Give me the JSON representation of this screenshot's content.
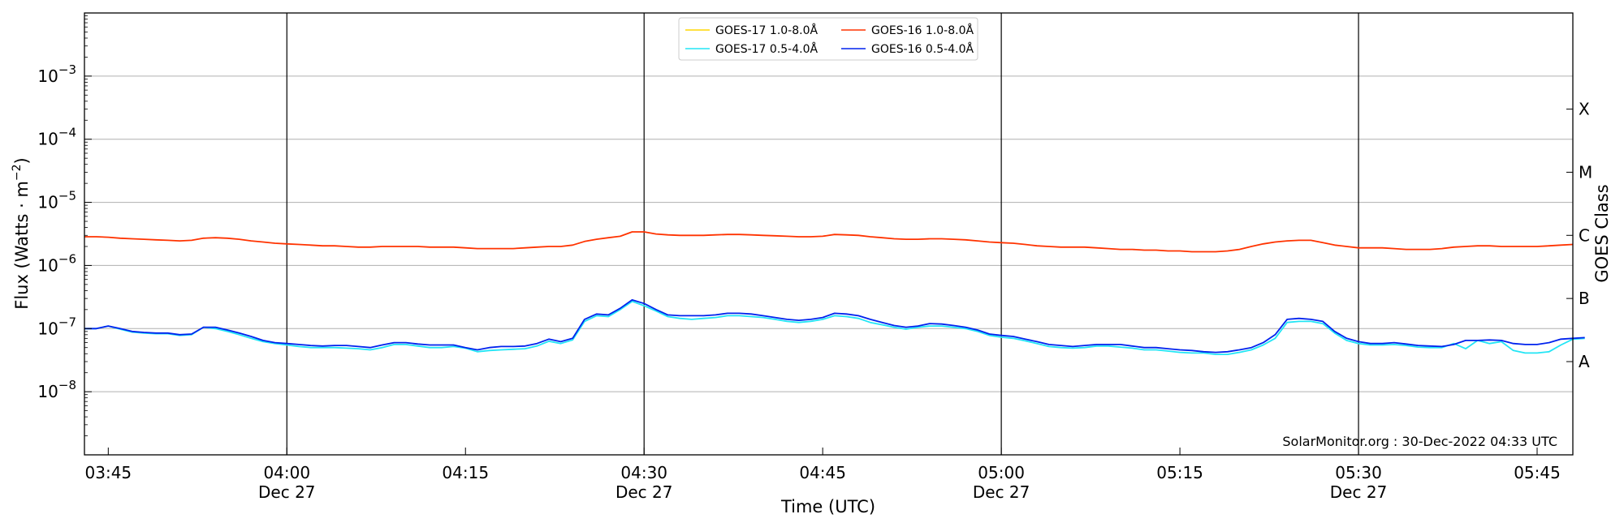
{
  "chart_data": {
    "type": "line",
    "title": "",
    "xlabel": "Time (UTC)",
    "ylabel_text": "Flux (Watts · m",
    "ylabel_sup": "−2",
    "ylabel_close": ")",
    "right_axis_label": "GOES Class",
    "y_scale": "log",
    "ylim": [
      1e-09,
      0.01
    ],
    "xlim": [
      "03:43",
      "05:48"
    ],
    "date": "Dec 27",
    "grid": "horizontal at decades",
    "legend_position": "top-center",
    "x_ticks": [
      {
        "label": "03:45",
        "date": ""
      },
      {
        "label": "04:00",
        "date": "Dec 27"
      },
      {
        "label": "04:15",
        "date": ""
      },
      {
        "label": "04:30",
        "date": "Dec 27"
      },
      {
        "label": "04:45",
        "date": ""
      },
      {
        "label": "05:00",
        "date": "Dec 27"
      },
      {
        "label": "05:15",
        "date": ""
      },
      {
        "label": "05:30",
        "date": "Dec 27"
      },
      {
        "label": "05:45",
        "date": ""
      }
    ],
    "x_tick_minutes": [
      225,
      240,
      255,
      270,
      285,
      300,
      315,
      330,
      345
    ],
    "x_major_minutes": [
      240,
      270,
      300,
      330
    ],
    "y_ticks": [
      {
        "mant": "10",
        "exp": "−3",
        "value": 0.001
      },
      {
        "mant": "10",
        "exp": "−4",
        "value": 0.0001
      },
      {
        "mant": "10",
        "exp": "−5",
        "value": 1e-05
      },
      {
        "mant": "10",
        "exp": "−6",
        "value": 1e-06
      },
      {
        "mant": "10",
        "exp": "−7",
        "value": 1e-07
      },
      {
        "mant": "10",
        "exp": "−8",
        "value": 1e-08
      }
    ],
    "goes_classes": [
      {
        "label": "X",
        "value": 0.0003
      },
      {
        "label": "M",
        "value": 3e-05
      },
      {
        "label": "C",
        "value": 3e-06
      },
      {
        "label": "B",
        "value": 3e-07
      },
      {
        "label": "A",
        "value": 3e-08
      }
    ],
    "x_minutes_start": 223,
    "x_step_minutes": 1,
    "series": [
      {
        "name": "GOES-17 1.0-8.0Å",
        "color": "#ffd700",
        "values": []
      },
      {
        "name": "GOES-17 0.5-4.0Å",
        "color": "#22e5f5",
        "values": [
          1e-07,
          1e-07,
          1.1e-07,
          9.8e-08,
          8.8e-08,
          8.5e-08,
          8.3e-08,
          8.3e-08,
          7.8e-08,
          8e-08,
          1.05e-07,
          1e-07,
          9e-08,
          8e-08,
          7e-08,
          6.2e-08,
          5.8e-08,
          5.5e-08,
          5.2e-08,
          5e-08,
          5e-08,
          5e-08,
          4.9e-08,
          4.8e-08,
          4.6e-08,
          5e-08,
          5.6e-08,
          5.6e-08,
          5.3e-08,
          5e-08,
          5e-08,
          5.2e-08,
          4.9e-08,
          4.3e-08,
          4.5e-08,
          4.6e-08,
          4.7e-08,
          4.8e-08,
          5.3e-08,
          6.3e-08,
          5.8e-08,
          6.6e-08,
          1.3e-07,
          1.6e-07,
          1.55e-07,
          2e-07,
          2.7e-07,
          2.3e-07,
          1.9e-07,
          1.55e-07,
          1.45e-07,
          1.4e-07,
          1.45e-07,
          1.5e-07,
          1.6e-07,
          1.6e-07,
          1.55e-07,
          1.5e-07,
          1.4e-07,
          1.3e-07,
          1.25e-07,
          1.3e-07,
          1.4e-07,
          1.6e-07,
          1.55e-07,
          1.45e-07,
          1.25e-07,
          1.15e-07,
          1.05e-07,
          9.8e-08,
          1.05e-07,
          1.1e-07,
          1.1e-07,
          1.05e-07,
          1e-07,
          9e-08,
          7.8e-08,
          7.3e-08,
          7e-08,
          6.4e-08,
          5.8e-08,
          5.2e-08,
          5e-08,
          4.9e-08,
          5e-08,
          5.3e-08,
          5.3e-08,
          5.1e-08,
          4.9e-08,
          4.6e-08,
          4.6e-08,
          4.4e-08,
          4.2e-08,
          4.1e-08,
          4.1e-08,
          3.9e-08,
          3.9e-08,
          4.2e-08,
          4.6e-08,
          5.5e-08,
          7e-08,
          1.25e-07,
          1.3e-07,
          1.3e-07,
          1.2e-07,
          8.5e-08,
          6.5e-08,
          5.8e-08,
          5.5e-08,
          5.5e-08,
          5.6e-08,
          5.4e-08,
          5.1e-08,
          5e-08,
          5e-08,
          5.8e-08,
          4.8e-08,
          6.5e-08,
          5.8e-08,
          6.2e-08,
          4.5e-08,
          4.1e-08,
          4.1e-08,
          4.3e-08,
          5.5e-08,
          6.8e-08,
          7e-08
        ]
      },
      {
        "name": "GOES-16 1.0-8.0Å",
        "color": "#ff3300",
        "values": [
          2.85e-06,
          2.85e-06,
          2.8e-06,
          2.7e-06,
          2.65e-06,
          2.6e-06,
          2.55e-06,
          2.5e-06,
          2.45e-06,
          2.5e-06,
          2.7e-06,
          2.75e-06,
          2.7e-06,
          2.6e-06,
          2.45e-06,
          2.35e-06,
          2.25e-06,
          2.2e-06,
          2.15e-06,
          2.1e-06,
          2.05e-06,
          2.05e-06,
          2e-06,
          1.95e-06,
          1.95e-06,
          2e-06,
          2e-06,
          2e-06,
          2e-06,
          1.95e-06,
          1.95e-06,
          1.95e-06,
          1.9e-06,
          1.85e-06,
          1.85e-06,
          1.85e-06,
          1.85e-06,
          1.9e-06,
          1.95e-06,
          2e-06,
          2e-06,
          2.1e-06,
          2.4e-06,
          2.6e-06,
          2.75e-06,
          2.9e-06,
          3.4e-06,
          3.4e-06,
          3.15e-06,
          3.05e-06,
          3e-06,
          3e-06,
          3e-06,
          3.05e-06,
          3.1e-06,
          3.1e-06,
          3.05e-06,
          3e-06,
          2.95e-06,
          2.9e-06,
          2.85e-06,
          2.85e-06,
          2.9e-06,
          3.1e-06,
          3.05e-06,
          3e-06,
          2.85e-06,
          2.75e-06,
          2.65e-06,
          2.6e-06,
          2.6e-06,
          2.65e-06,
          2.65e-06,
          2.6e-06,
          2.55e-06,
          2.45e-06,
          2.35e-06,
          2.3e-06,
          2.25e-06,
          2.15e-06,
          2.05e-06,
          2e-06,
          1.95e-06,
          1.95e-06,
          1.95e-06,
          1.9e-06,
          1.85e-06,
          1.8e-06,
          1.8e-06,
          1.75e-06,
          1.75e-06,
          1.7e-06,
          1.7e-06,
          1.65e-06,
          1.65e-06,
          1.65e-06,
          1.7e-06,
          1.8e-06,
          2e-06,
          2.2e-06,
          2.35e-06,
          2.45e-06,
          2.5e-06,
          2.5e-06,
          2.3e-06,
          2.1e-06,
          2e-06,
          1.9e-06,
          1.9e-06,
          1.9e-06,
          1.85e-06,
          1.8e-06,
          1.8e-06,
          1.8e-06,
          1.85e-06,
          1.95e-06,
          2e-06,
          2.05e-06,
          2.05e-06,
          2e-06,
          2e-06,
          2e-06,
          2e-06,
          2.05e-06,
          2.1e-06,
          2.15e-06
        ]
      },
      {
        "name": "GOES-16 0.5-4.0Å",
        "color": "#0022ee",
        "values": [
          1e-07,
          1e-07,
          1.1e-07,
          1e-07,
          9e-08,
          8.7e-08,
          8.5e-08,
          8.5e-08,
          8e-08,
          8.2e-08,
          1.05e-07,
          1.05e-07,
          9.5e-08,
          8.5e-08,
          7.5e-08,
          6.5e-08,
          6e-08,
          5.8e-08,
          5.6e-08,
          5.4e-08,
          5.3e-08,
          5.4e-08,
          5.4e-08,
          5.2e-08,
          5e-08,
          5.5e-08,
          6e-08,
          6e-08,
          5.7e-08,
          5.5e-08,
          5.5e-08,
          5.5e-08,
          5e-08,
          4.6e-08,
          5e-08,
          5.2e-08,
          5.2e-08,
          5.3e-08,
          5.8e-08,
          6.8e-08,
          6.2e-08,
          7e-08,
          1.4e-07,
          1.7e-07,
          1.65e-07,
          2.1e-07,
          2.85e-07,
          2.5e-07,
          2e-07,
          1.65e-07,
          1.6e-07,
          1.6e-07,
          1.6e-07,
          1.65e-07,
          1.75e-07,
          1.75e-07,
          1.7e-07,
          1.6e-07,
          1.5e-07,
          1.4e-07,
          1.35e-07,
          1.4e-07,
          1.5e-07,
          1.75e-07,
          1.7e-07,
          1.6e-07,
          1.4e-07,
          1.25e-07,
          1.12e-07,
          1.05e-07,
          1.1e-07,
          1.2e-07,
          1.18e-07,
          1.12e-07,
          1.05e-07,
          9.5e-08,
          8.2e-08,
          7.8e-08,
          7.5e-08,
          6.8e-08,
          6.2e-08,
          5.6e-08,
          5.4e-08,
          5.2e-08,
          5.4e-08,
          5.6e-08,
          5.6e-08,
          5.6e-08,
          5.3e-08,
          5e-08,
          5e-08,
          4.8e-08,
          4.6e-08,
          4.5e-08,
          4.3e-08,
          4.2e-08,
          4.3e-08,
          4.6e-08,
          5e-08,
          6e-08,
          8e-08,
          1.4e-07,
          1.45e-07,
          1.4e-07,
          1.3e-07,
          9e-08,
          7e-08,
          6.2e-08,
          5.8e-08,
          5.8e-08,
          6e-08,
          5.7e-08,
          5.4e-08,
          5.3e-08,
          5.2e-08,
          5.6e-08,
          6.5e-08,
          6.5e-08,
          6.6e-08,
          6.5e-08,
          5.8e-08,
          5.6e-08,
          5.6e-08,
          6e-08,
          6.8e-08,
          7e-08,
          7.2e-08
        ]
      }
    ],
    "credit": "SolarMonitor.org : 30-Dec-2022 04:33 UTC"
  }
}
